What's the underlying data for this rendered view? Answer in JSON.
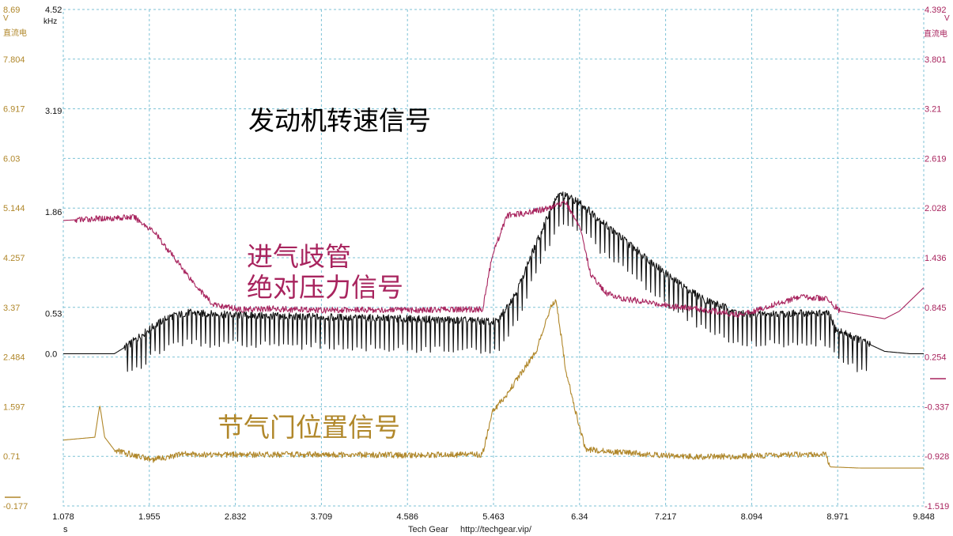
{
  "chart_data": {
    "type": "line",
    "colors": {
      "dc_voltage": "#b0872a",
      "frequency": "#111111",
      "right_voltage": "#a8245e",
      "grid": "#7ec2d6"
    },
    "x_axis": {
      "unit": "s",
      "ticks": [
        "1.078",
        "1.955",
        "2.832",
        "3.709",
        "4.586",
        "5.463",
        "6.34",
        "7.217",
        "8.094",
        "8.971",
        "9.848"
      ],
      "range": [
        1.078,
        9.848
      ]
    },
    "axes": {
      "dc_voltage": {
        "unit": "V",
        "label": "直流电",
        "ticks": [
          "8.69",
          "7.804",
          "6.917",
          "6.03",
          "5.144",
          "4.257",
          "3.37",
          "2.484",
          "1.597",
          "0.71",
          "-0.177"
        ],
        "range": [
          -0.177,
          8.69
        ]
      },
      "frequency": {
        "unit": "kHz",
        "ticks": [
          "4.52",
          "3.19",
          "1.86",
          "0.53",
          "0.0"
        ],
        "range": [
          -2.0,
          4.52
        ]
      },
      "right_voltage": {
        "unit": "V",
        "label": "直流电",
        "ticks": [
          "4.392",
          "3.801",
          "3.21",
          "2.619",
          "2.028",
          "1.436",
          "0.845",
          "0.254",
          "-0.337",
          "-0.928",
          "-1.519"
        ],
        "range": [
          -1.519,
          4.392
        ]
      }
    },
    "series": [
      {
        "name": "发动机转速信号",
        "axis": "frequency",
        "x": [
          1.078,
          1.6,
          1.75,
          1.85,
          2.0,
          2.15,
          2.35,
          2.6,
          3.0,
          3.7,
          4.5,
          5.1,
          5.5,
          5.7,
          5.85,
          6.0,
          6.1,
          6.15,
          6.35,
          6.6,
          7.0,
          7.3,
          7.6,
          7.8,
          8.0,
          8.3,
          8.6,
          8.88,
          8.95,
          9.2,
          9.45,
          9.7,
          9.848
        ],
        "y": [
          0.0,
          0.0,
          0.12,
          0.22,
          0.36,
          0.48,
          0.54,
          0.52,
          0.5,
          0.48,
          0.46,
          0.44,
          0.42,
          0.82,
          1.3,
          1.75,
          2.05,
          2.1,
          1.98,
          1.7,
          1.28,
          0.97,
          0.72,
          0.62,
          0.52,
          0.52,
          0.53,
          0.53,
          0.32,
          0.18,
          0.03,
          0.0,
          0.0
        ]
      },
      {
        "name": "进气歧管绝对压力信号",
        "axis": "right_voltage",
        "x": [
          1.078,
          1.4,
          1.8,
          2.0,
          2.2,
          2.4,
          2.6,
          2.9,
          3.2,
          3.7,
          4.0,
          4.5,
          5.0,
          5.35,
          5.45,
          5.6,
          5.7,
          6.0,
          6.2,
          6.35,
          6.45,
          6.6,
          6.75,
          7.0,
          7.3,
          7.6,
          7.95,
          8.2,
          8.4,
          8.6,
          8.85,
          9.0,
          9.3,
          9.45,
          9.6,
          9.848
        ],
        "y": [
          1.88,
          1.9,
          1.92,
          1.75,
          1.45,
          1.15,
          0.88,
          0.82,
          0.83,
          0.81,
          0.82,
          0.81,
          0.82,
          0.82,
          1.46,
          1.94,
          1.95,
          2.02,
          2.1,
          1.78,
          1.25,
          1.02,
          0.96,
          0.91,
          0.86,
          0.82,
          0.76,
          0.83,
          0.91,
          0.97,
          0.95,
          0.8,
          0.74,
          0.71,
          0.8,
          1.08
        ]
      },
      {
        "name": "节气门位置信号",
        "axis": "dc_voltage",
        "x": [
          1.078,
          1.4,
          1.45,
          1.5,
          1.6,
          1.75,
          2.0,
          2.3,
          2.6,
          3.0,
          3.7,
          4.5,
          5.0,
          5.35,
          5.45,
          5.6,
          5.9,
          6.05,
          6.1,
          6.2,
          6.3,
          6.4,
          6.6,
          7.0,
          7.5,
          8.0,
          8.5,
          8.85,
          8.9,
          9.2,
          9.848
        ],
        "y": [
          1.0,
          1.05,
          1.63,
          1.05,
          0.82,
          0.75,
          0.65,
          0.75,
          0.74,
          0.74,
          0.74,
          0.73,
          0.74,
          0.74,
          1.5,
          1.82,
          2.6,
          3.4,
          3.52,
          2.25,
          1.5,
          0.84,
          0.8,
          0.75,
          0.7,
          0.71,
          0.74,
          0.74,
          0.52,
          0.5,
          0.5
        ]
      }
    ],
    "annotations": {
      "engine_speed": "发动机转速信号",
      "map_line1": "进气歧管",
      "map_line2": "绝对压力信号",
      "throttle": "节气门位置信号"
    },
    "footer": {
      "brand": "Tech Gear",
      "url": "http://techgear.vip/"
    },
    "grid": true
  }
}
